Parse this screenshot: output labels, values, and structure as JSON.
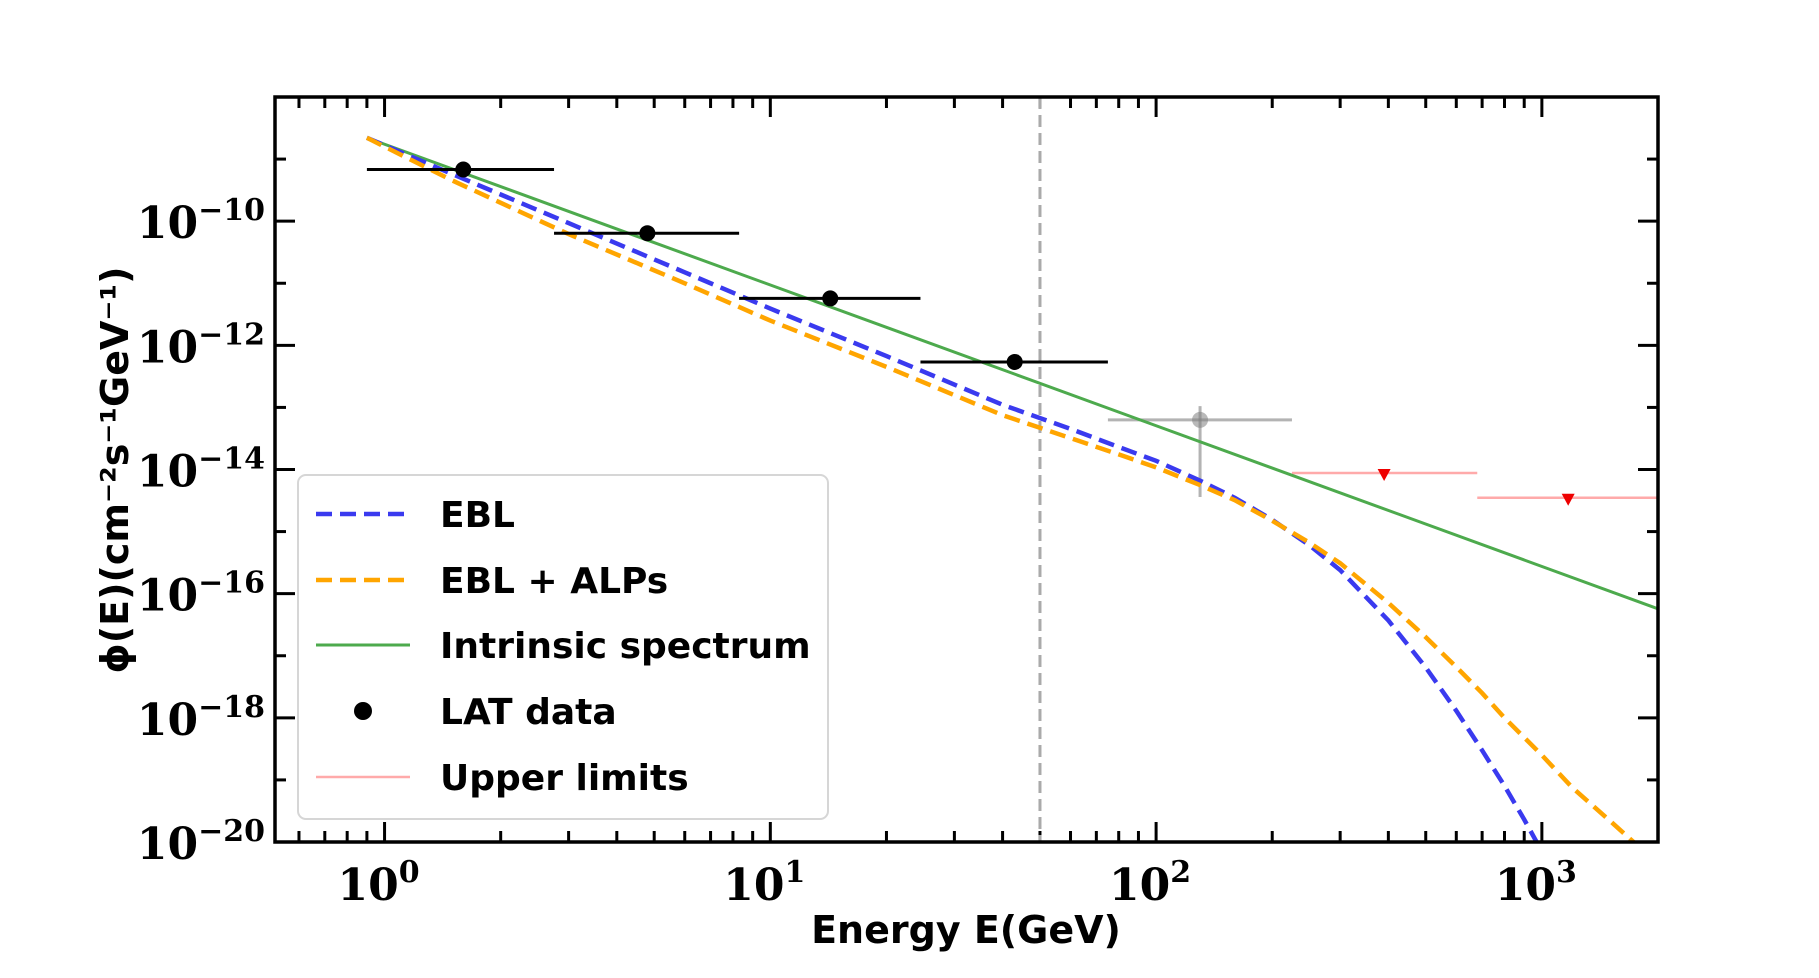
{
  "chart_data": {
    "type": "line",
    "title": "",
    "xlabel": "Energy E(GeV)",
    "ylabel": "ϕ(E)(cm⁻²s⁻¹GeV⁻¹)",
    "xscale": "log",
    "yscale": "log",
    "xlim": [
      0.52,
      2000
    ],
    "ylim": [
      1e-20,
      1e-08
    ],
    "x_ticks": [
      {
        "value": 1,
        "label": "10",
        "exp": "0"
      },
      {
        "value": 10,
        "label": "10",
        "exp": "1"
      },
      {
        "value": 100,
        "label": "10",
        "exp": "2"
      },
      {
        "value": 1000,
        "label": "10",
        "exp": "3"
      }
    ],
    "y_ticks": [
      {
        "value": 1e-10,
        "label": "10",
        "exp": "−10"
      },
      {
        "value": 1e-12,
        "label": "10",
        "exp": "−12"
      },
      {
        "value": 1e-14,
        "label": "10",
        "exp": "−14"
      },
      {
        "value": 1e-16,
        "label": "10",
        "exp": "−16"
      },
      {
        "value": 1e-18,
        "label": "10",
        "exp": "−18"
      },
      {
        "value": 1e-20,
        "label": "10",
        "exp": "−20"
      }
    ],
    "vline": {
      "x": 50,
      "style": "dashed",
      "color": "#aaaaaa"
    },
    "colors": {
      "ebl": "#3a3aef",
      "ebl_alps": "#ffa500",
      "intrinsic": "#4daa4d",
      "lat": "#000000",
      "ul_line": "#ffaaaa",
      "ul_marker": "#ee0000",
      "gray_point": "#808080"
    },
    "series": [
      {
        "name": "EBL",
        "style": "dashed",
        "x": [
          0.9,
          1.5,
          3,
          6,
          10,
          20,
          40,
          60,
          80,
          100,
          130,
          160,
          200,
          250,
          300,
          400,
          500,
          600,
          700,
          800,
          900,
          1000
        ],
        "y": [
          2.2e-09,
          5.7e-10,
          9.3e-11,
          1.5e-11,
          3.9e-12,
          6.7e-13,
          1.1e-13,
          4.5e-14,
          2.3e-14,
          1.38e-14,
          6.6e-15,
          3.5e-15,
          1.55e-15,
          6e-16,
          2.4e-16,
          3.7e-17,
          6.5e-18,
          1.3e-18,
          3e-19,
          8e-20,
          2.3e-20,
          7e-21
        ]
      },
      {
        "name": "EBL + ALPs",
        "style": "dashed",
        "x": [
          0.9,
          1.5,
          3,
          6,
          10,
          20,
          40,
          60,
          80,
          100,
          130,
          160,
          200,
          250,
          300,
          400,
          500,
          600,
          700,
          800,
          1000,
          1200,
          1500,
          1800
        ],
        "y": [
          2.2e-09,
          4.5e-10,
          6.2e-11,
          1e-11,
          2.5e-12,
          4.5e-13,
          7.5e-14,
          3.2e-14,
          1.75e-14,
          1.08e-14,
          5.6e-15,
          3.2e-15,
          1.5e-15,
          6.6e-16,
          3.1e-16,
          7.1e-17,
          2e-17,
          6.6e-18,
          2.5e-18,
          1e-18,
          2.5e-19,
          7.5e-20,
          2.2e-20,
          8e-21
        ]
      },
      {
        "name": "Intrinsic spectrum",
        "style": "solid",
        "x": [
          0.9,
          2000
        ],
        "y": [
          2.2e-09,
          5.7e-17
        ]
      }
    ],
    "lat_data": {
      "name": "LAT data",
      "points": [
        {
          "x": 1.6,
          "y": 6.8e-10,
          "xlo": 0.9,
          "xhi": 2.75
        },
        {
          "x": 4.8,
          "y": 6.4e-11,
          "xlo": 2.75,
          "xhi": 8.3
        },
        {
          "x": 14.3,
          "y": 5.7e-12,
          "xlo": 8.3,
          "xhi": 24.5
        },
        {
          "x": 43,
          "y": 5.4e-13,
          "xlo": 24.5,
          "xhi": 75
        }
      ]
    },
    "extra_point": {
      "x": 130,
      "y": 6.3e-14,
      "xlo": 75,
      "xhi": 225,
      "ylo": 3.6e-15,
      "yhi": 1.05e-13
    },
    "upper_limits": {
      "name": "Upper limits",
      "points": [
        {
          "x": 390,
          "y": 8.8e-15,
          "xlo": 225,
          "xhi": 680
        },
        {
          "x": 1170,
          "y": 3.5e-15,
          "xlo": 680,
          "xhi": 2000
        }
      ]
    },
    "legend": {
      "placement": "lower-left",
      "entries": [
        "EBL",
        "EBL + ALPs",
        "Intrinsic spectrum",
        "LAT data",
        "Upper limits"
      ]
    }
  }
}
